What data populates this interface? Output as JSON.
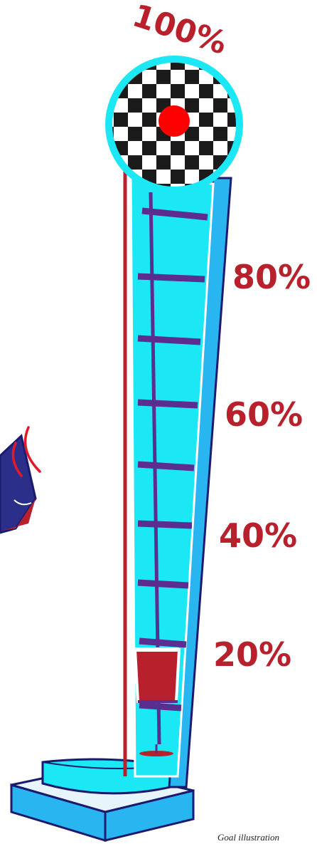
{
  "labels": {
    "top": "100%",
    "marks": [
      "80%",
      "60%",
      "40%",
      "20%"
    ]
  },
  "caption": "Goal illustration",
  "level": {
    "puck_percent": 20
  },
  "colors": {
    "label": "#b8202b",
    "tube": "#1ce8f5",
    "frame": "#29b6f0",
    "outline": "#1c1a6e",
    "rung": "#5c2d91",
    "puck": "#b8202b",
    "bell_ring": "#1ce8f5",
    "bell_dot": "#ff0000",
    "mallet": "#2b2f8a"
  },
  "icons": {
    "bell": "checkered-bell-icon",
    "puck": "striker-puck-icon",
    "mallet": "mallet-icon",
    "base": "platform-base-icon"
  }
}
